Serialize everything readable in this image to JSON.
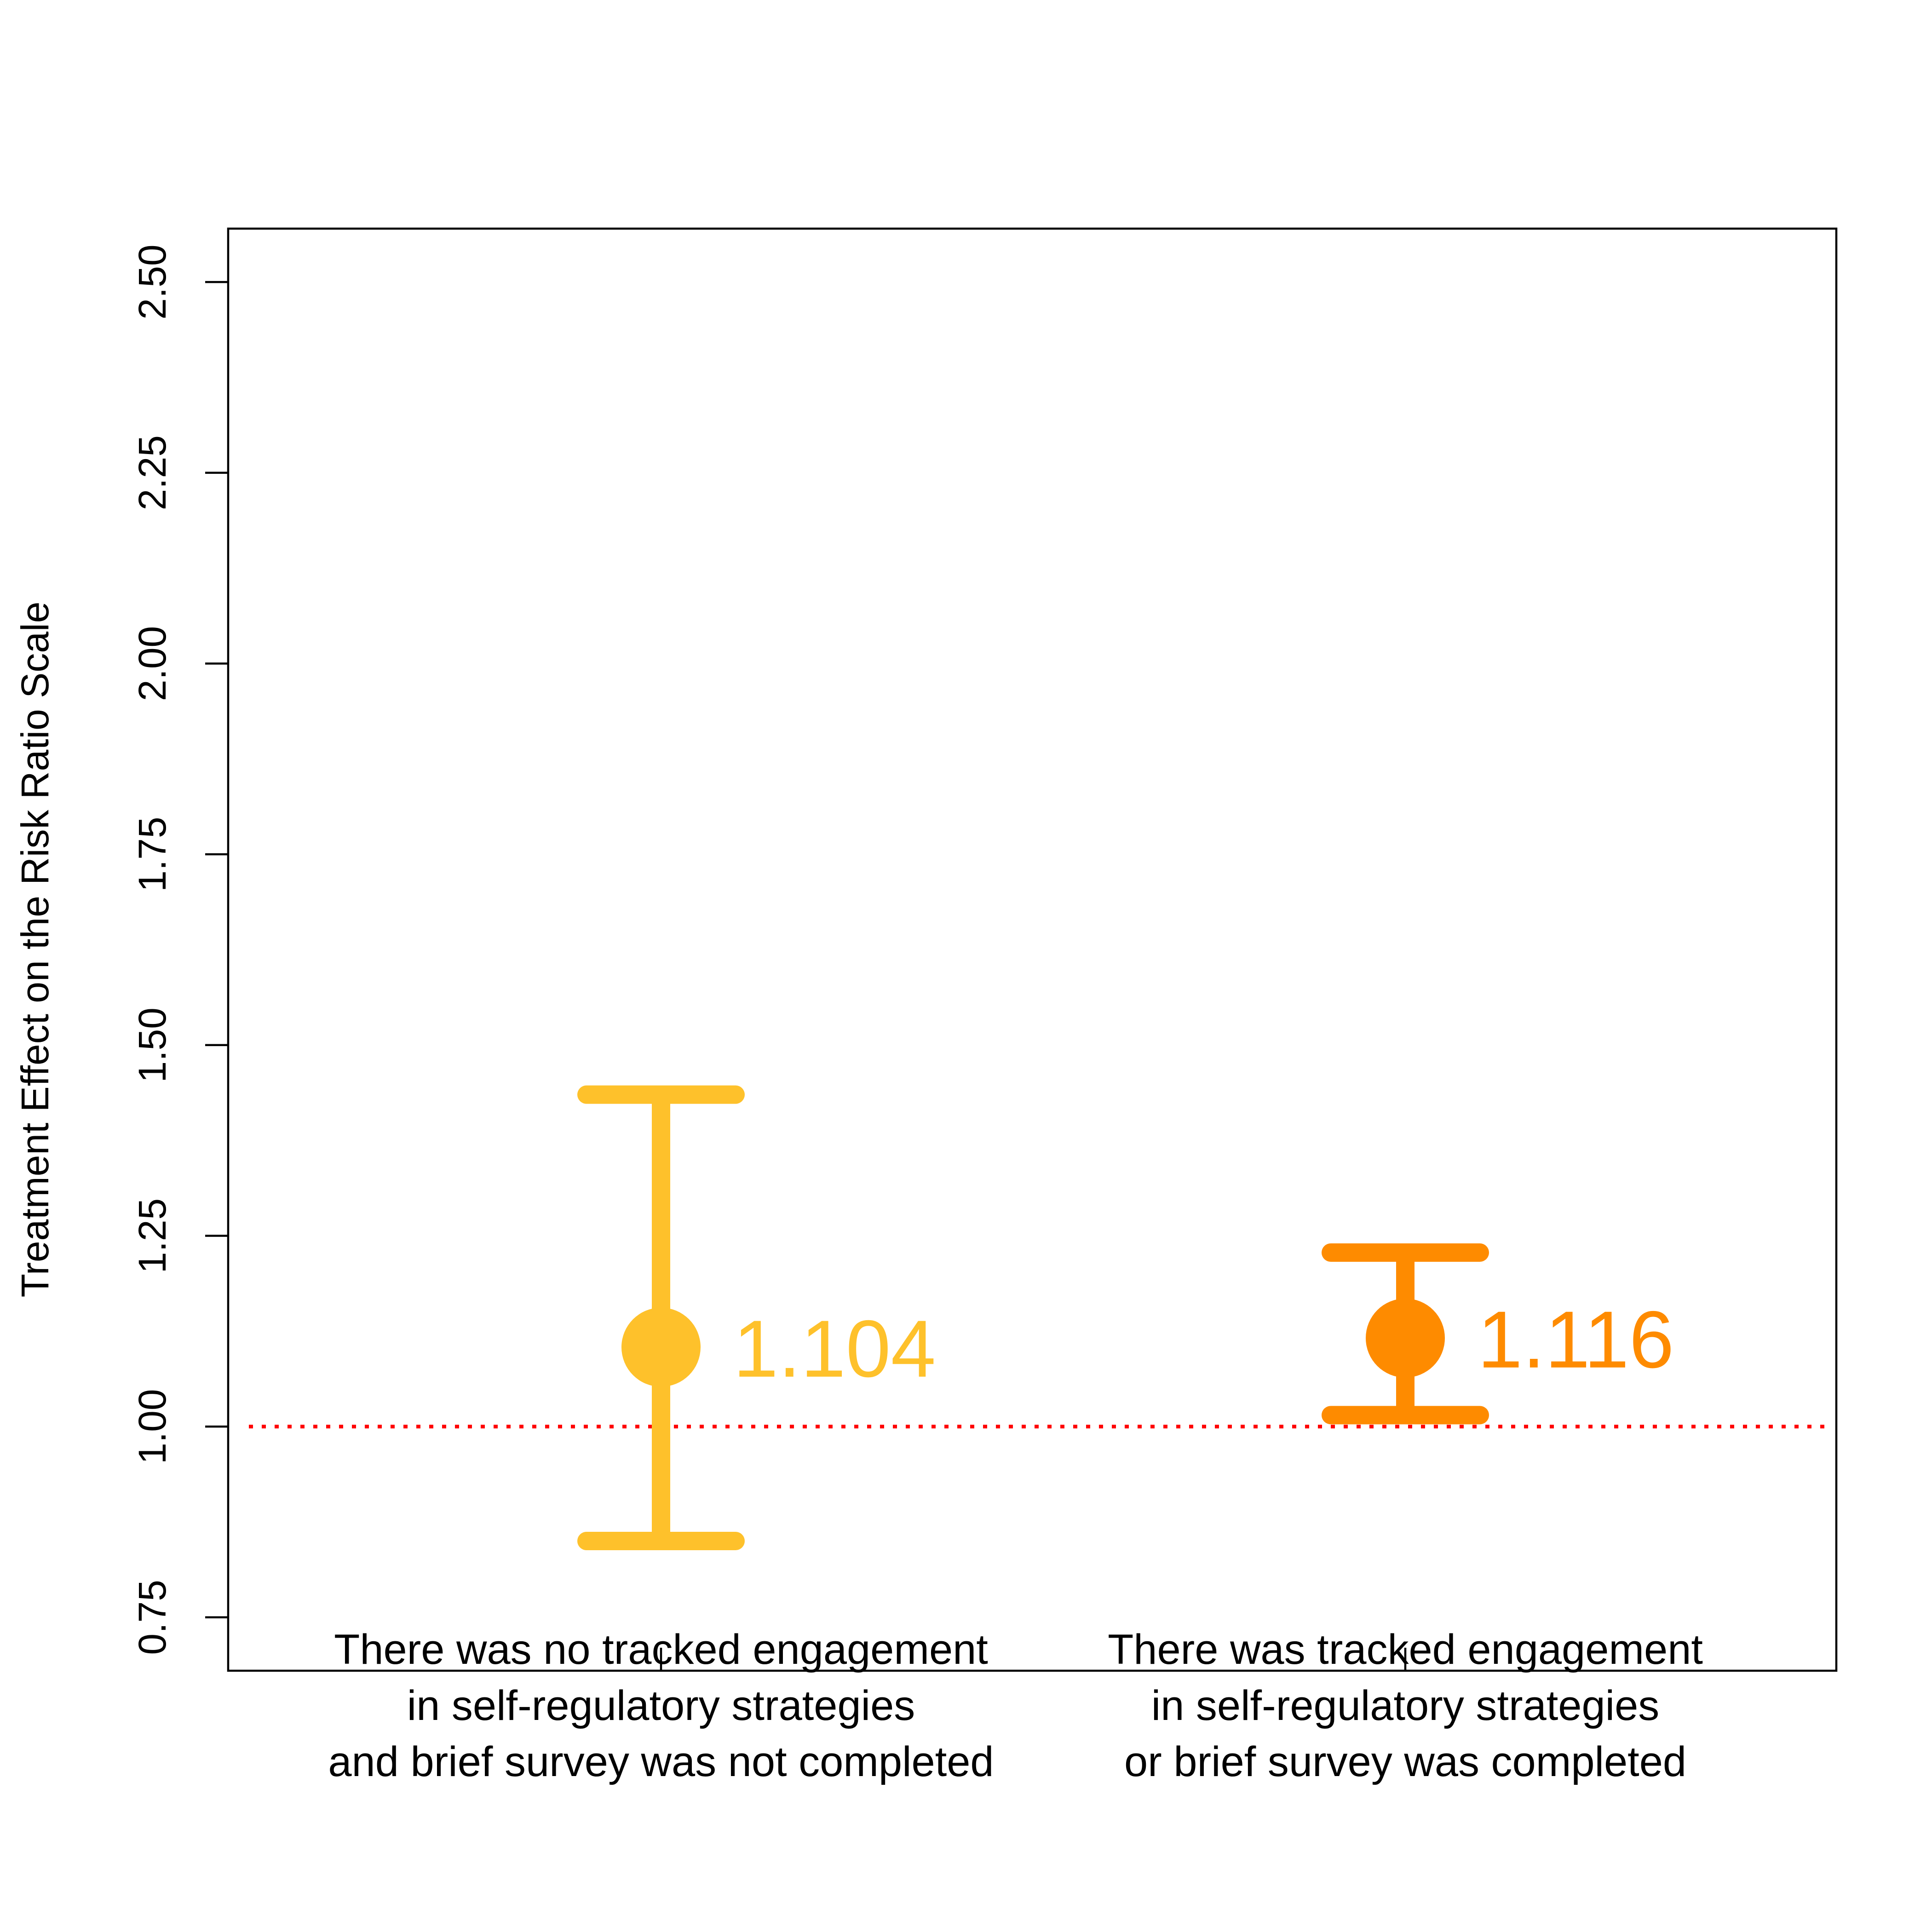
{
  "chart_data": {
    "type": "scatter",
    "title": "",
    "xlabel": "",
    "ylabel": "Treatment Effect on the Risk Ratio Scale",
    "ylim": [
      0.68,
      2.57
    ],
    "yticks": [
      "0.75",
      "1.00",
      "1.25",
      "1.50",
      "1.75",
      "2.00",
      "2.25",
      "2.50"
    ],
    "reference_line": {
      "y": 1.0,
      "color": "#ff0000",
      "style": "dotted"
    },
    "grid": false,
    "legend": "none",
    "points": [
      {
        "label_lines": [
          "There was no tracked engagement",
          "in self-regulatory strategies",
          "and brief survey was not completed"
        ],
        "estimate": 1.104,
        "estimate_label": "1.104",
        "ci_lower": 0.85,
        "ci_upper": 1.435,
        "color": "#fec12b"
      },
      {
        "label_lines": [
          "There was tracked engagement",
          "in self-regulatory strategies",
          "or brief survey was completed"
        ],
        "estimate": 1.116,
        "estimate_label": "1.116",
        "ci_lower": 1.015,
        "ci_upper": 1.228,
        "color": "#fe8b00"
      }
    ]
  }
}
